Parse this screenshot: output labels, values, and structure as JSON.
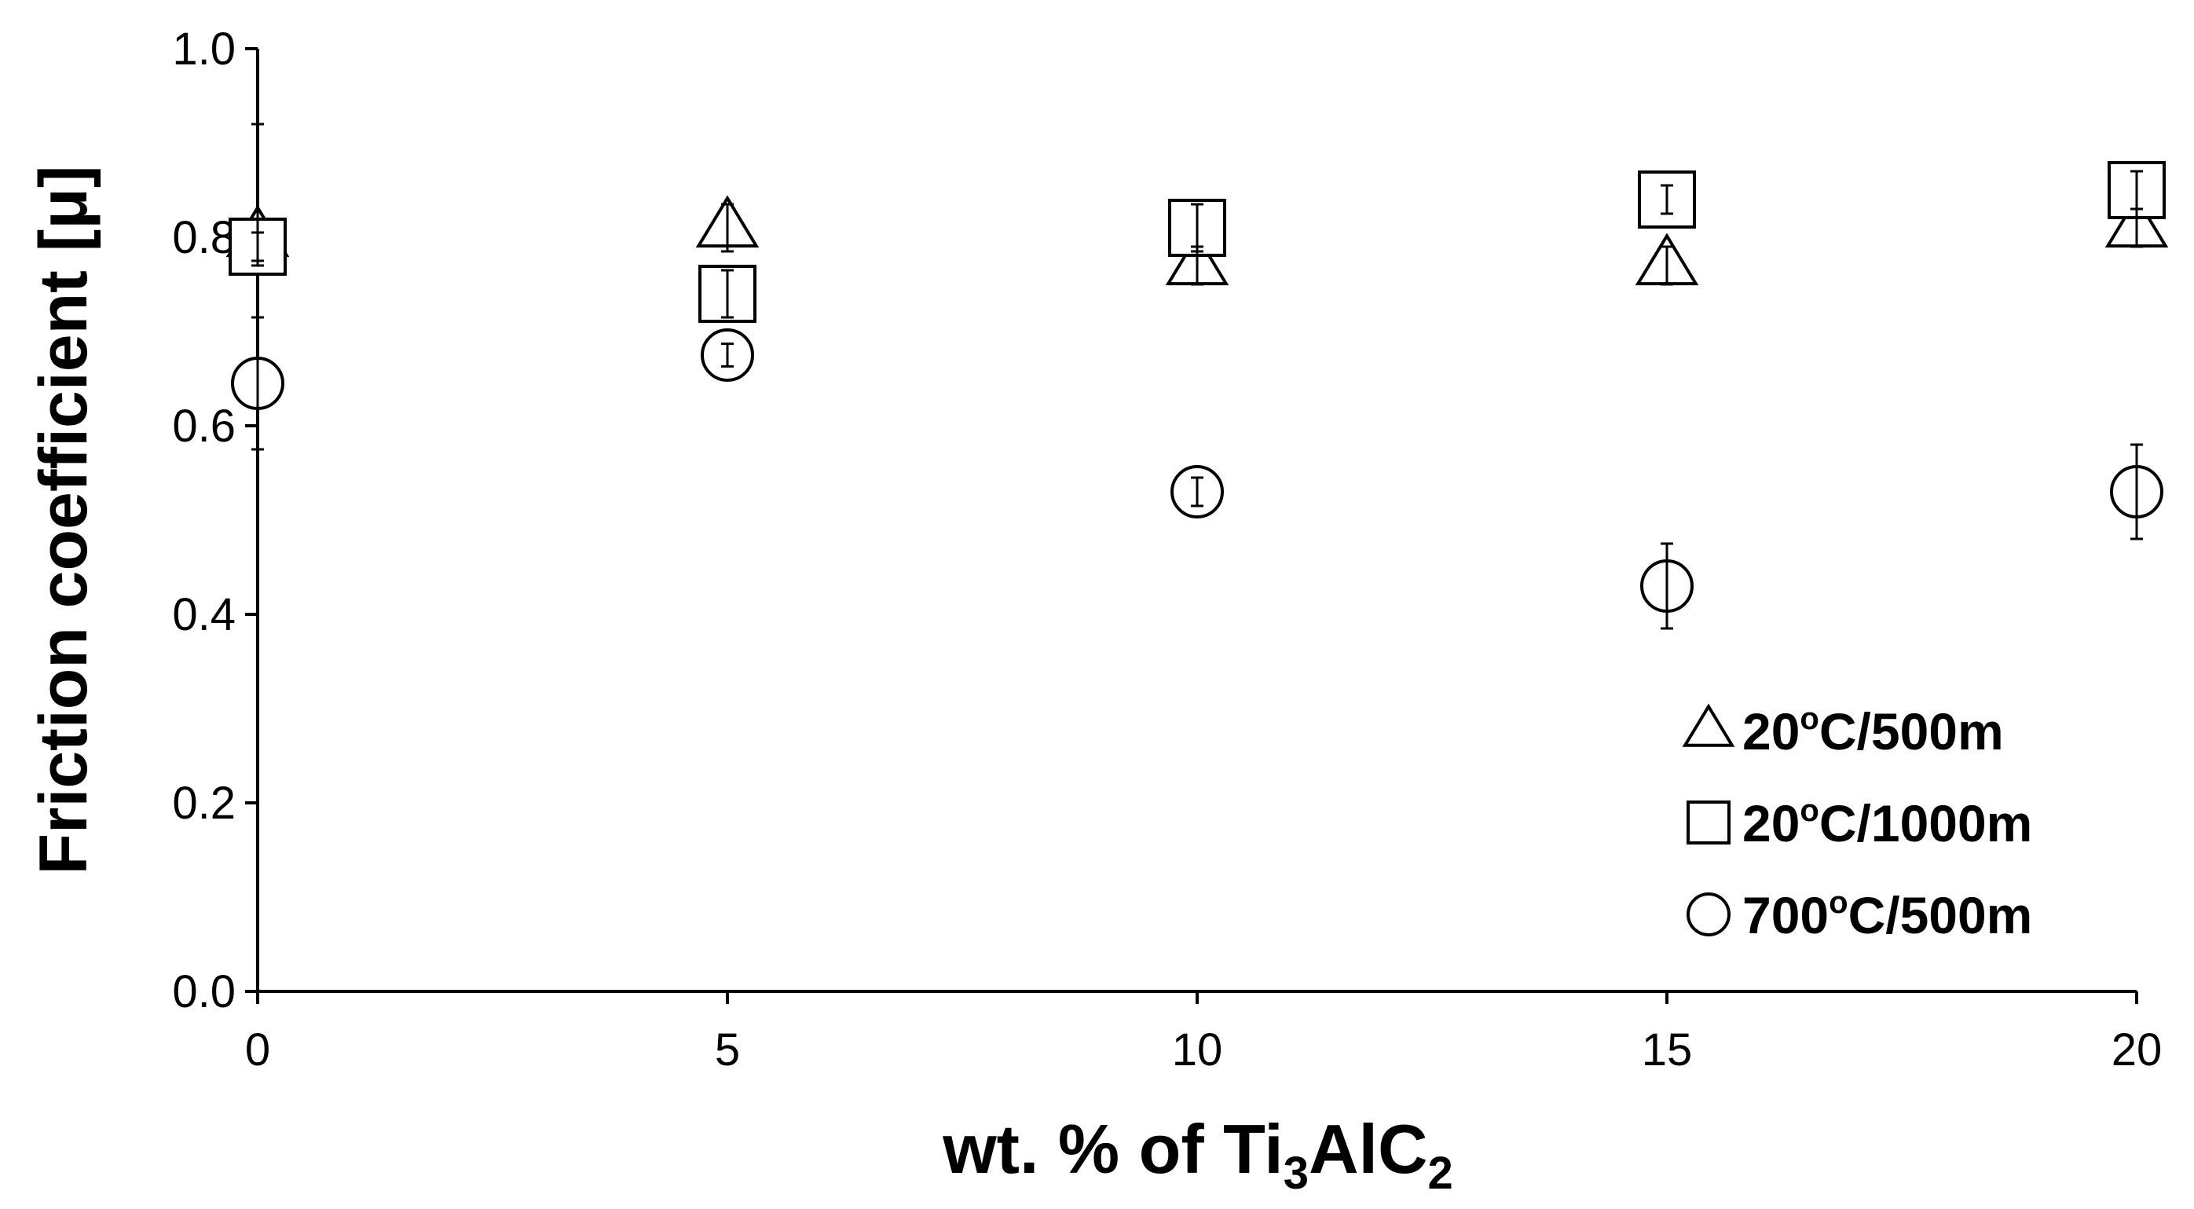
{
  "chart_data": {
    "type": "scatter",
    "title": "",
    "xlabel": {
      "prefix": "wt. % of Ti",
      "sub1": "3",
      "mid": "AlC",
      "sub2": "2"
    },
    "ylabel": "Friction coefficient [μ]",
    "xlim": [
      0,
      20
    ],
    "ylim": [
      0,
      1.0
    ],
    "x_ticks": [
      0,
      5,
      10,
      15,
      20
    ],
    "x_tick_labels": [
      "0",
      "5",
      "10",
      "15",
      "20"
    ],
    "y_ticks": [
      0,
      0.2,
      0.4,
      0.6,
      0.8,
      1.0
    ],
    "y_tick_labels": [
      "0.0",
      "0.2",
      "0.4",
      "0.6",
      "0.8",
      "1.0"
    ],
    "grid": false,
    "legend_position": "bottom-right",
    "series": [
      {
        "name": {
          "base": "20",
          "sup": "o",
          "rest": "C/500m"
        },
        "marker": "triangle",
        "x": [
          0,
          5,
          10,
          15,
          20
        ],
        "y": [
          0.8,
          0.81,
          0.77,
          0.77,
          0.81
        ],
        "err_low": [
          0.03,
          0.025,
          0.02,
          0.02,
          0.02
        ],
        "err_high": [
          0.12,
          0.025,
          0.02,
          0.02,
          0.02
        ]
      },
      {
        "name": {
          "base": "20",
          "sup": "o",
          "rest": "C/1000m"
        },
        "marker": "square",
        "x": [
          0,
          5,
          10,
          15,
          20
        ],
        "y": [
          0.79,
          0.74,
          0.81,
          0.84,
          0.85
        ],
        "err_low": [
          0.015,
          0.025,
          0.025,
          0.015,
          0.02
        ],
        "err_high": [
          0.015,
          0.025,
          0.025,
          0.015,
          0.02
        ]
      },
      {
        "name": {
          "base": "700",
          "sup": "o",
          "rest": "C/500m"
        },
        "marker": "circle",
        "x": [
          0,
          5,
          10,
          15,
          20
        ],
        "y": [
          0.645,
          0.675,
          0.53,
          0.43,
          0.53
        ],
        "err_low": [
          0.07,
          0.012,
          0.015,
          0.045,
          0.05
        ],
        "err_high": [
          0.07,
          0.012,
          0.015,
          0.045,
          0.05
        ]
      }
    ]
  }
}
